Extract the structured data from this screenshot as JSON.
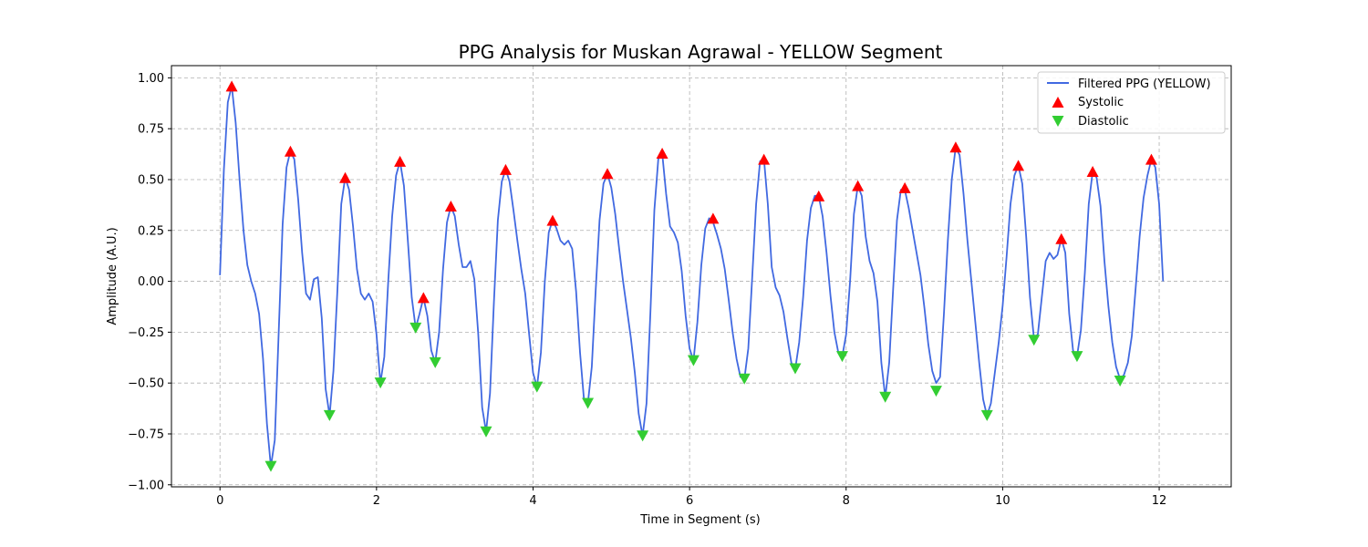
{
  "chart_data": {
    "type": "line",
    "title": "PPG Analysis for Muskan Agrawal - YELLOW Segment",
    "xlabel": "Time in Segment (s)",
    "ylabel": "Amplitude (A.U.)",
    "xlim": [
      -0.62,
      12.92
    ],
    "ylim": [
      -1.01,
      1.06
    ],
    "xticks": [
      0,
      2,
      4,
      6,
      8,
      10,
      12
    ],
    "yticks": [
      -1.0,
      -0.75,
      -0.5,
      -0.25,
      0.0,
      0.25,
      0.5,
      0.75,
      1.0
    ],
    "xtick_labels": [
      "0",
      "2",
      "4",
      "6",
      "8",
      "10",
      "12"
    ],
    "ytick_labels": [
      "−1.00",
      "−0.75",
      "−0.50",
      "−0.25",
      "0.00",
      "0.25",
      "0.50",
      "0.75",
      "1.00"
    ],
    "grid": true,
    "legend_position": "top-right",
    "colors": {
      "line": "#4169e1",
      "systolic": "#ff0000",
      "diastolic": "#32cd32",
      "grid": "#b0b0b0"
    },
    "series": [
      {
        "name": "Filtered PPG (YELLOW)",
        "kind": "line",
        "points": [
          [
            0.0,
            0.03
          ],
          [
            0.05,
            0.55
          ],
          [
            0.1,
            0.88
          ],
          [
            0.15,
            0.96
          ],
          [
            0.2,
            0.78
          ],
          [
            0.25,
            0.5
          ],
          [
            0.3,
            0.25
          ],
          [
            0.35,
            0.08
          ],
          [
            0.4,
            0.0
          ],
          [
            0.45,
            -0.06
          ],
          [
            0.5,
            -0.16
          ],
          [
            0.55,
            -0.38
          ],
          [
            0.6,
            -0.7
          ],
          [
            0.65,
            -0.91
          ],
          [
            0.7,
            -0.78
          ],
          [
            0.75,
            -0.25
          ],
          [
            0.8,
            0.28
          ],
          [
            0.85,
            0.56
          ],
          [
            0.9,
            0.64
          ],
          [
            0.95,
            0.6
          ],
          [
            1.0,
            0.4
          ],
          [
            1.05,
            0.14
          ],
          [
            1.1,
            -0.06
          ],
          [
            1.15,
            -0.09
          ],
          [
            1.2,
            0.01
          ],
          [
            1.25,
            0.02
          ],
          [
            1.3,
            -0.18
          ],
          [
            1.35,
            -0.53
          ],
          [
            1.4,
            -0.66
          ],
          [
            1.45,
            -0.44
          ],
          [
            1.5,
            -0.05
          ],
          [
            1.55,
            0.38
          ],
          [
            1.6,
            0.51
          ],
          [
            1.65,
            0.45
          ],
          [
            1.7,
            0.27
          ],
          [
            1.75,
            0.06
          ],
          [
            1.8,
            -0.06
          ],
          [
            1.85,
            -0.09
          ],
          [
            1.9,
            -0.06
          ],
          [
            1.95,
            -0.1
          ],
          [
            2.0,
            -0.26
          ],
          [
            2.05,
            -0.5
          ],
          [
            2.1,
            -0.37
          ],
          [
            2.15,
            0.0
          ],
          [
            2.2,
            0.32
          ],
          [
            2.25,
            0.52
          ],
          [
            2.3,
            0.59
          ],
          [
            2.35,
            0.47
          ],
          [
            2.4,
            0.2
          ],
          [
            2.45,
            -0.08
          ],
          [
            2.5,
            -0.23
          ],
          [
            2.55,
            -0.16
          ],
          [
            2.6,
            -0.08
          ],
          [
            2.65,
            -0.17
          ],
          [
            2.7,
            -0.34
          ],
          [
            2.75,
            -0.4
          ],
          [
            2.8,
            -0.25
          ],
          [
            2.85,
            0.06
          ],
          [
            2.9,
            0.29
          ],
          [
            2.95,
            0.37
          ],
          [
            3.0,
            0.32
          ],
          [
            3.05,
            0.18
          ],
          [
            3.1,
            0.07
          ],
          [
            3.15,
            0.07
          ],
          [
            3.2,
            0.1
          ],
          [
            3.25,
            0.01
          ],
          [
            3.3,
            -0.26
          ],
          [
            3.35,
            -0.62
          ],
          [
            3.4,
            -0.74
          ],
          [
            3.45,
            -0.55
          ],
          [
            3.5,
            -0.1
          ],
          [
            3.55,
            0.3
          ],
          [
            3.6,
            0.49
          ],
          [
            3.65,
            0.55
          ],
          [
            3.7,
            0.49
          ],
          [
            3.75,
            0.35
          ],
          [
            3.8,
            0.2
          ],
          [
            3.85,
            0.06
          ],
          [
            3.9,
            -0.06
          ],
          [
            3.95,
            -0.26
          ],
          [
            4.0,
            -0.45
          ],
          [
            4.05,
            -0.52
          ],
          [
            4.1,
            -0.35
          ],
          [
            4.15,
            0.0
          ],
          [
            4.2,
            0.24
          ],
          [
            4.25,
            0.3
          ],
          [
            4.3,
            0.26
          ],
          [
            4.35,
            0.2
          ],
          [
            4.4,
            0.18
          ],
          [
            4.45,
            0.2
          ],
          [
            4.5,
            0.16
          ],
          [
            4.55,
            -0.05
          ],
          [
            4.6,
            -0.35
          ],
          [
            4.65,
            -0.58
          ],
          [
            4.7,
            -0.6
          ],
          [
            4.75,
            -0.42
          ],
          [
            4.8,
            -0.05
          ],
          [
            4.85,
            0.3
          ],
          [
            4.9,
            0.48
          ],
          [
            4.95,
            0.53
          ],
          [
            5.0,
            0.46
          ],
          [
            5.05,
            0.33
          ],
          [
            5.1,
            0.16
          ],
          [
            5.15,
            0.0
          ],
          [
            5.2,
            -0.14
          ],
          [
            5.25,
            -0.28
          ],
          [
            5.3,
            -0.45
          ],
          [
            5.35,
            -0.65
          ],
          [
            5.4,
            -0.76
          ],
          [
            5.45,
            -0.6
          ],
          [
            5.5,
            -0.15
          ],
          [
            5.55,
            0.35
          ],
          [
            5.6,
            0.6
          ],
          [
            5.65,
            0.63
          ],
          [
            5.7,
            0.43
          ],
          [
            5.75,
            0.27
          ],
          [
            5.8,
            0.24
          ],
          [
            5.85,
            0.19
          ],
          [
            5.9,
            0.05
          ],
          [
            5.95,
            -0.17
          ],
          [
            6.0,
            -0.33
          ],
          [
            6.05,
            -0.39
          ],
          [
            6.1,
            -0.2
          ],
          [
            6.15,
            0.08
          ],
          [
            6.2,
            0.26
          ],
          [
            6.25,
            0.31
          ],
          [
            6.3,
            0.29
          ],
          [
            6.35,
            0.23
          ],
          [
            6.4,
            0.16
          ],
          [
            6.45,
            0.06
          ],
          [
            6.5,
            -0.09
          ],
          [
            6.55,
            -0.25
          ],
          [
            6.6,
            -0.38
          ],
          [
            6.65,
            -0.47
          ],
          [
            6.7,
            -0.48
          ],
          [
            6.75,
            -0.33
          ],
          [
            6.8,
            0.02
          ],
          [
            6.85,
            0.38
          ],
          [
            6.9,
            0.59
          ],
          [
            6.95,
            0.6
          ],
          [
            7.0,
            0.38
          ],
          [
            7.05,
            0.07
          ],
          [
            7.1,
            -0.03
          ],
          [
            7.15,
            -0.07
          ],
          [
            7.2,
            -0.15
          ],
          [
            7.25,
            -0.28
          ],
          [
            7.3,
            -0.4
          ],
          [
            7.35,
            -0.43
          ],
          [
            7.4,
            -0.3
          ],
          [
            7.45,
            -0.08
          ],
          [
            7.5,
            0.2
          ],
          [
            7.55,
            0.36
          ],
          [
            7.6,
            0.42
          ],
          [
            7.65,
            0.42
          ],
          [
            7.7,
            0.32
          ],
          [
            7.75,
            0.14
          ],
          [
            7.8,
            -0.07
          ],
          [
            7.85,
            -0.25
          ],
          [
            7.9,
            -0.35
          ],
          [
            7.95,
            -0.37
          ],
          [
            8.0,
            -0.26
          ],
          [
            8.05,
            0.0
          ],
          [
            8.1,
            0.33
          ],
          [
            8.15,
            0.47
          ],
          [
            8.2,
            0.42
          ],
          [
            8.25,
            0.22
          ],
          [
            8.3,
            0.1
          ],
          [
            8.35,
            0.04
          ],
          [
            8.4,
            -0.1
          ],
          [
            8.45,
            -0.4
          ],
          [
            8.5,
            -0.57
          ],
          [
            8.55,
            -0.4
          ],
          [
            8.6,
            -0.04
          ],
          [
            8.65,
            0.3
          ],
          [
            8.7,
            0.45
          ],
          [
            8.75,
            0.45
          ],
          [
            8.8,
            0.36
          ],
          [
            8.85,
            0.25
          ],
          [
            8.9,
            0.14
          ],
          [
            8.95,
            0.03
          ],
          [
            9.0,
            -0.13
          ],
          [
            9.05,
            -0.31
          ],
          [
            9.1,
            -0.44
          ],
          [
            9.15,
            -0.5
          ],
          [
            9.2,
            -0.47
          ],
          [
            9.25,
            -0.16
          ],
          [
            9.3,
            0.2
          ],
          [
            9.35,
            0.5
          ],
          [
            9.4,
            0.66
          ],
          [
            9.45,
            0.62
          ],
          [
            9.5,
            0.43
          ],
          [
            9.55,
            0.2
          ],
          [
            9.6,
            0.0
          ],
          [
            9.65,
            -0.2
          ],
          [
            9.7,
            -0.4
          ],
          [
            9.75,
            -0.58
          ],
          [
            9.8,
            -0.66
          ],
          [
            9.85,
            -0.6
          ],
          [
            9.9,
            -0.45
          ],
          [
            9.95,
            -0.3
          ],
          [
            10.0,
            -0.12
          ],
          [
            10.05,
            0.12
          ],
          [
            10.1,
            0.38
          ],
          [
            10.15,
            0.52
          ],
          [
            10.2,
            0.57
          ],
          [
            10.25,
            0.48
          ],
          [
            10.3,
            0.22
          ],
          [
            10.35,
            -0.08
          ],
          [
            10.4,
            -0.28
          ],
          [
            10.45,
            -0.26
          ],
          [
            10.5,
            -0.08
          ],
          [
            10.55,
            0.1
          ],
          [
            10.6,
            0.14
          ],
          [
            10.65,
            0.11
          ],
          [
            10.7,
            0.13
          ],
          [
            10.75,
            0.21
          ],
          [
            10.8,
            0.14
          ],
          [
            10.85,
            -0.16
          ],
          [
            10.9,
            -0.34
          ],
          [
            10.95,
            -0.37
          ],
          [
            11.0,
            -0.24
          ],
          [
            11.05,
            0.04
          ],
          [
            11.1,
            0.38
          ],
          [
            11.15,
            0.54
          ],
          [
            11.2,
            0.51
          ],
          [
            11.25,
            0.37
          ],
          [
            11.3,
            0.1
          ],
          [
            11.35,
            -0.12
          ],
          [
            11.4,
            -0.3
          ],
          [
            11.45,
            -0.42
          ],
          [
            11.5,
            -0.48
          ],
          [
            11.55,
            -0.46
          ],
          [
            11.6,
            -0.4
          ],
          [
            11.65,
            -0.27
          ],
          [
            11.7,
            -0.03
          ],
          [
            11.75,
            0.22
          ],
          [
            11.8,
            0.41
          ],
          [
            11.85,
            0.52
          ],
          [
            11.9,
            0.6
          ],
          [
            11.95,
            0.56
          ],
          [
            12.0,
            0.38
          ],
          [
            12.05,
            0.0
          ]
        ]
      },
      {
        "name": "Systolic",
        "kind": "marker",
        "marker": "triangle-up",
        "points": [
          [
            0.15,
            0.96
          ],
          [
            0.9,
            0.64
          ],
          [
            1.6,
            0.51
          ],
          [
            2.3,
            0.59
          ],
          [
            2.6,
            -0.08
          ],
          [
            2.95,
            0.37
          ],
          [
            3.65,
            0.55
          ],
          [
            4.25,
            0.3
          ],
          [
            4.95,
            0.53
          ],
          [
            5.65,
            0.63
          ],
          [
            6.3,
            0.31
          ],
          [
            6.95,
            0.6
          ],
          [
            7.65,
            0.42
          ],
          [
            8.15,
            0.47
          ],
          [
            8.75,
            0.46
          ],
          [
            9.4,
            0.66
          ],
          [
            10.2,
            0.57
          ],
          [
            10.75,
            0.21
          ],
          [
            11.15,
            0.54
          ],
          [
            11.9,
            0.6
          ]
        ]
      },
      {
        "name": "Diastolic",
        "kind": "marker",
        "marker": "triangle-down",
        "points": [
          [
            0.65,
            -0.91
          ],
          [
            1.4,
            -0.66
          ],
          [
            2.05,
            -0.5
          ],
          [
            2.5,
            -0.23
          ],
          [
            2.75,
            -0.4
          ],
          [
            3.4,
            -0.74
          ],
          [
            4.05,
            -0.52
          ],
          [
            4.7,
            -0.6
          ],
          [
            5.4,
            -0.76
          ],
          [
            6.05,
            -0.39
          ],
          [
            6.7,
            -0.48
          ],
          [
            7.35,
            -0.43
          ],
          [
            7.95,
            -0.37
          ],
          [
            8.5,
            -0.57
          ],
          [
            9.15,
            -0.54
          ],
          [
            9.8,
            -0.66
          ],
          [
            10.4,
            -0.29
          ],
          [
            10.95,
            -0.37
          ],
          [
            11.5,
            -0.49
          ]
        ]
      }
    ]
  }
}
